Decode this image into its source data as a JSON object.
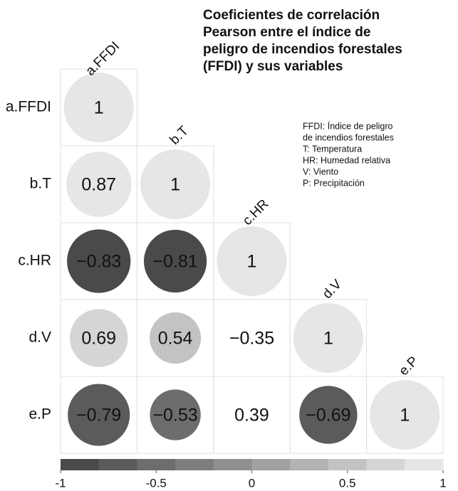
{
  "chart_data": {
    "type": "correlogram",
    "title": [
      "Coeficientes de correlación",
      "Pearson entre el índice de",
      "peligro de incendios forestales",
      "(FFDI) y sus variables"
    ],
    "notes": [
      "FFDI: Índice de peligro",
      "de incendios forestales",
      "T: Temperatura",
      "HR: Humedad relativa",
      "V: Viento",
      "P: Precipitación"
    ],
    "variables": [
      "a.FFDI",
      "b.T",
      "c.HR",
      "d.V",
      "e.P"
    ],
    "values": [
      [
        1
      ],
      [
        0.87,
        1
      ],
      [
        -0.83,
        -0.81,
        1
      ],
      [
        0.69,
        0.54,
        -0.35,
        1
      ],
      [
        -0.79,
        -0.53,
        0.39,
        -0.69,
        1
      ]
    ],
    "value_labels": [
      [
        "1"
      ],
      [
        "0.87",
        "1"
      ],
      [
        "−0.83",
        "−0.81",
        "1"
      ],
      [
        "0.69",
        "0.54",
        "−0.35",
        "1"
      ],
      [
        "−0.79",
        "−0.53",
        "0.39",
        "−0.69",
        "1"
      ]
    ],
    "show_circle": [
      [
        true
      ],
      [
        true,
        true
      ],
      [
        true,
        true,
        true
      ],
      [
        true,
        true,
        false,
        true
      ],
      [
        true,
        true,
        false,
        true,
        true
      ]
    ],
    "clim": [
      -1,
      1
    ],
    "cticks": [
      -1,
      -0.5,
      0,
      0.5,
      1
    ],
    "colors": [
      "#4a4a4a",
      "#e6e6e6"
    ],
    "color_bins": 10
  }
}
